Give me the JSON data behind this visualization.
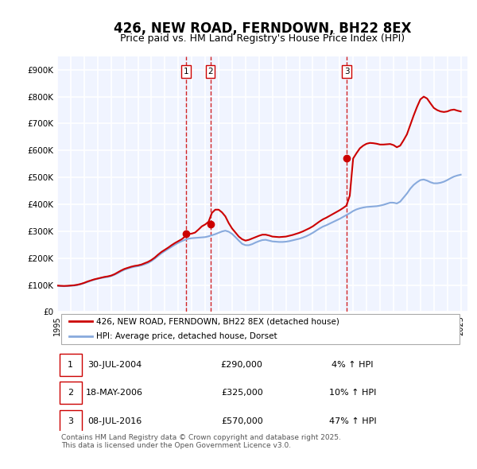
{
  "title": "426, NEW ROAD, FERNDOWN, BH22 8EX",
  "subtitle": "Price paid vs. HM Land Registry's House Price Index (HPI)",
  "title_fontsize": 12,
  "subtitle_fontsize": 9,
  "ylabel_ticks": [
    "£0",
    "£100K",
    "£200K",
    "£300K",
    "£400K",
    "£500K",
    "£600K",
    "£700K",
    "£800K",
    "£900K"
  ],
  "ylabel_values": [
    0,
    100000,
    200000,
    300000,
    400000,
    500000,
    600000,
    700000,
    800000,
    900000
  ],
  "ylim": [
    0,
    950000
  ],
  "xlim_start": 1995.0,
  "xlim_end": 2025.5,
  "background_color": "#f0f4ff",
  "plot_bg_color": "#f0f4ff",
  "grid_color": "#ffffff",
  "red_line_color": "#cc0000",
  "blue_line_color": "#88aadd",
  "sale_marker_color": "#cc0000",
  "vline_color": "#cc0000",
  "transaction_line_color": "#cc0000",
  "sale1_x": 2004.58,
  "sale1_y": 290000,
  "sale2_x": 2006.38,
  "sale2_y": 325000,
  "sale3_x": 2016.52,
  "sale3_y": 570000,
  "legend_label_red": "426, NEW ROAD, FERNDOWN, BH22 8EX (detached house)",
  "legend_label_blue": "HPI: Average price, detached house, Dorset",
  "table_entries": [
    {
      "num": "1",
      "date": "30-JUL-2004",
      "price": "£290,000",
      "change": "4% ↑ HPI"
    },
    {
      "num": "2",
      "date": "18-MAY-2006",
      "price": "£325,000",
      "change": "10% ↑ HPI"
    },
    {
      "num": "3",
      "date": "08-JUL-2016",
      "price": "£570,000",
      "change": "47% ↑ HPI"
    }
  ],
  "footer_text": "Contains HM Land Registry data © Crown copyright and database right 2025.\nThis data is licensed under the Open Government Licence v3.0.",
  "hpi_data": {
    "x": [
      1995.0,
      1995.25,
      1995.5,
      1995.75,
      1996.0,
      1996.25,
      1996.5,
      1996.75,
      1997.0,
      1997.25,
      1997.5,
      1997.75,
      1998.0,
      1998.25,
      1998.5,
      1998.75,
      1999.0,
      1999.25,
      1999.5,
      1999.75,
      2000.0,
      2000.25,
      2000.5,
      2000.75,
      2001.0,
      2001.25,
      2001.5,
      2001.75,
      2002.0,
      2002.25,
      2002.5,
      2002.75,
      2003.0,
      2003.25,
      2003.5,
      2003.75,
      2004.0,
      2004.25,
      2004.5,
      2004.75,
      2005.0,
      2005.25,
      2005.5,
      2005.75,
      2006.0,
      2006.25,
      2006.5,
      2006.75,
      2007.0,
      2007.25,
      2007.5,
      2007.75,
      2008.0,
      2008.25,
      2008.5,
      2008.75,
      2009.0,
      2009.25,
      2009.5,
      2009.75,
      2010.0,
      2010.25,
      2010.5,
      2010.75,
      2011.0,
      2011.25,
      2011.5,
      2011.75,
      2012.0,
      2012.25,
      2012.5,
      2012.75,
      2013.0,
      2013.25,
      2013.5,
      2013.75,
      2014.0,
      2014.25,
      2014.5,
      2014.75,
      2015.0,
      2015.25,
      2015.5,
      2015.75,
      2016.0,
      2016.25,
      2016.5,
      2016.75,
      2017.0,
      2017.25,
      2017.5,
      2017.75,
      2018.0,
      2018.25,
      2018.5,
      2018.75,
      2019.0,
      2019.25,
      2019.5,
      2019.75,
      2020.0,
      2020.25,
      2020.5,
      2020.75,
      2021.0,
      2021.25,
      2021.5,
      2021.75,
      2022.0,
      2022.25,
      2022.5,
      2022.75,
      2023.0,
      2023.25,
      2023.5,
      2023.75,
      2024.0,
      2024.25,
      2024.5,
      2024.75,
      2025.0
    ],
    "y": [
      97000,
      96000,
      95500,
      96000,
      97000,
      98000,
      100000,
      103000,
      107000,
      111000,
      116000,
      120000,
      123000,
      126000,
      128000,
      130000,
      133000,
      138000,
      144000,
      151000,
      157000,
      161000,
      165000,
      168000,
      170000,
      173000,
      177000,
      182000,
      189000,
      198000,
      208000,
      218000,
      226000,
      234000,
      242000,
      250000,
      257000,
      263000,
      268000,
      272000,
      274000,
      275000,
      276000,
      277000,
      278000,
      281000,
      285000,
      289000,
      294000,
      299000,
      302000,
      298000,
      290000,
      278000,
      265000,
      253000,
      248000,
      248000,
      252000,
      258000,
      263000,
      267000,
      268000,
      265000,
      262000,
      261000,
      260000,
      260000,
      261000,
      263000,
      266000,
      269000,
      272000,
      276000,
      281000,
      287000,
      294000,
      302000,
      310000,
      317000,
      322000,
      328000,
      334000,
      340000,
      346000,
      353000,
      360000,
      367000,
      375000,
      381000,
      385000,
      388000,
      390000,
      391000,
      392000,
      393000,
      395000,
      398000,
      402000,
      406000,
      406000,
      403000,
      410000,
      425000,
      440000,
      458000,
      472000,
      482000,
      490000,
      492000,
      488000,
      482000,
      478000,
      478000,
      480000,
      484000,
      490000,
      497000,
      503000,
      507000,
      510000
    ]
  },
  "price_data": {
    "x": [
      1995.0,
      1995.25,
      1995.5,
      1995.75,
      1996.0,
      1996.25,
      1996.5,
      1996.75,
      1997.0,
      1997.25,
      1997.5,
      1997.75,
      1998.0,
      1998.25,
      1998.5,
      1998.75,
      1999.0,
      1999.25,
      1999.5,
      1999.75,
      2000.0,
      2000.25,
      2000.5,
      2000.75,
      2001.0,
      2001.25,
      2001.5,
      2001.75,
      2002.0,
      2002.25,
      2002.5,
      2002.75,
      2003.0,
      2003.25,
      2003.5,
      2003.75,
      2004.0,
      2004.25,
      2004.5,
      2004.75,
      2005.0,
      2005.25,
      2005.5,
      2005.75,
      2006.0,
      2006.25,
      2006.5,
      2006.75,
      2007.0,
      2007.25,
      2007.5,
      2007.75,
      2008.0,
      2008.25,
      2008.5,
      2008.75,
      2009.0,
      2009.25,
      2009.5,
      2009.75,
      2010.0,
      2010.25,
      2010.5,
      2010.75,
      2011.0,
      2011.25,
      2011.5,
      2011.75,
      2012.0,
      2012.25,
      2012.5,
      2012.75,
      2013.0,
      2013.25,
      2013.5,
      2013.75,
      2014.0,
      2014.25,
      2014.5,
      2014.75,
      2015.0,
      2015.25,
      2015.5,
      2015.75,
      2016.0,
      2016.25,
      2016.5,
      2016.75,
      2017.0,
      2017.25,
      2017.5,
      2017.75,
      2018.0,
      2018.25,
      2018.5,
      2018.75,
      2019.0,
      2019.25,
      2019.5,
      2019.75,
      2020.0,
      2020.25,
      2020.5,
      2020.75,
      2021.0,
      2021.25,
      2021.5,
      2021.75,
      2022.0,
      2022.25,
      2022.5,
      2022.75,
      2023.0,
      2023.25,
      2023.5,
      2023.75,
      2024.0,
      2024.25,
      2024.5,
      2024.75,
      2025.0
    ],
    "y": [
      98000,
      97000,
      96500,
      97000,
      98000,
      99000,
      101000,
      104000,
      108000,
      113000,
      117000,
      121000,
      124000,
      127000,
      130000,
      132000,
      135000,
      140000,
      147000,
      154000,
      160000,
      164000,
      168000,
      171000,
      173000,
      176000,
      181000,
      186000,
      193000,
      202000,
      213000,
      223000,
      231000,
      239000,
      248000,
      256000,
      263000,
      270000,
      280000,
      290000,
      291000,
      295000,
      306000,
      318000,
      325000,
      335000,
      368000,
      380000,
      380000,
      370000,
      355000,
      330000,
      310000,
      295000,
      280000,
      270000,
      265000,
      268000,
      273000,
      278000,
      283000,
      287000,
      287000,
      284000,
      280000,
      279000,
      278000,
      279000,
      280000,
      283000,
      286000,
      290000,
      294000,
      299000,
      305000,
      311000,
      318000,
      327000,
      336000,
      344000,
      350000,
      357000,
      364000,
      371000,
      378000,
      386000,
      395000,
      432000,
      570000,
      590000,
      608000,
      618000,
      625000,
      628000,
      627000,
      625000,
      622000,
      622000,
      623000,
      624000,
      620000,
      612000,
      618000,
      638000,
      660000,
      695000,
      730000,
      762000,
      790000,
      800000,
      793000,
      775000,
      758000,
      750000,
      745000,
      743000,
      745000,
      750000,
      752000,
      748000,
      745000
    ]
  }
}
